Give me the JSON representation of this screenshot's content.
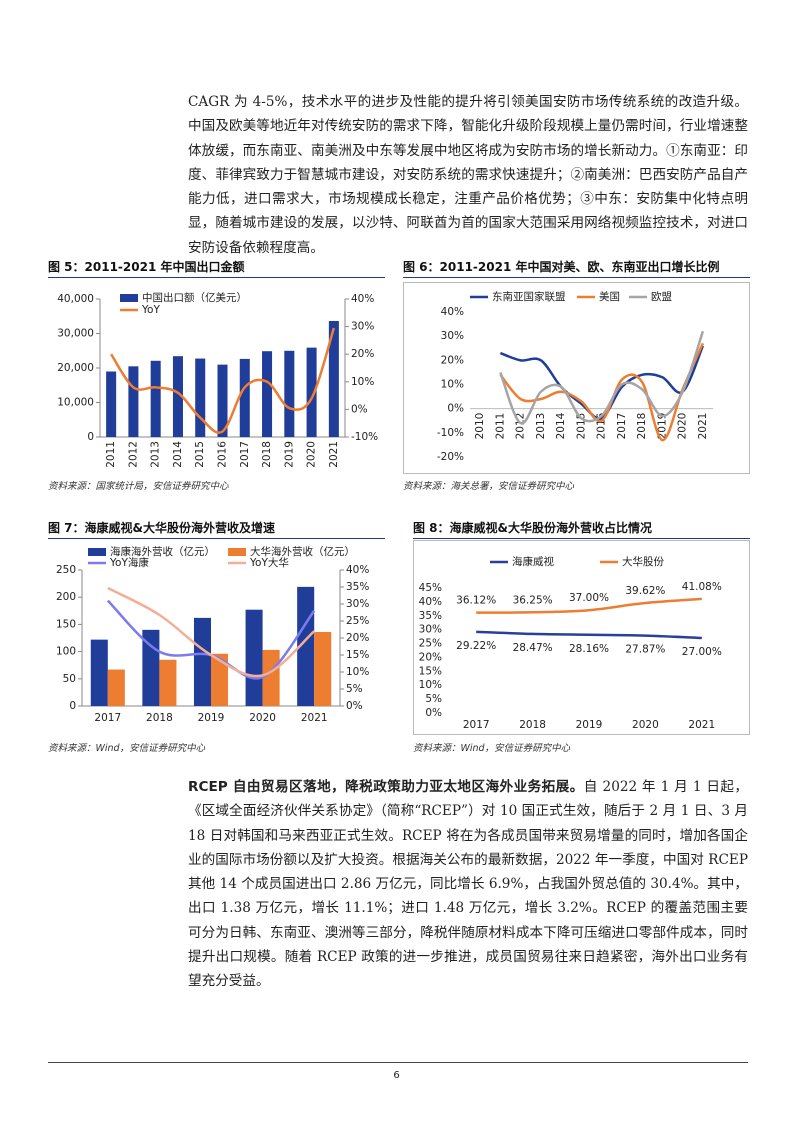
{
  "document": {
    "paragraphs": [
      {
        "text": "CAGR 为 4-5%，技术水平的进步及性能的提升将引领美国安防市场传统系统的改造升级。中国及欧美等地近年对传统安防的需求下降，智能化升级阶段规模上量仍需时间，行业增速整体放缓，而东南亚、南美洲及中东等发展中地区将成为安防市场的增长新动力。①东南亚：印度、菲律宾致力于智慧城市建设，对安防系统的需求快速提升；②南美洲：巴西安防产品自产能力低，进口需求大，市场规模成长稳定，注重产品价格优势；③中东：安防集中化特点明显，随着城市建设的发展，以沙特、阿联酋为首的国家大范围采用网络视频监控技术，对进口安防设备依赖程度高。"
      },
      {
        "lead": "RCEP 自由贸易区落地，降税政策助力亚太地区海外业务拓展。",
        "text": "自 2022 年 1 月 1 日起，《区域全面经济伙伴关系协定》（简称“RCEP”）对 10 国正式生效，随后于 2 月 1 日、3 月 18 日对韩国和马来西亚正式生效。RCEP 将在为各成员国带来贸易增量的同时，增加各国企业的国际市场份额以及扩大投资。根据海关公布的最新数据，2022 年一季度，中国对 RCEP 其他 14 个成员国进出口 2.86 万亿元，同比增长 6.9%，占我国外贸总值的 30.4%。其中，出口 1.38 万亿元，增长 11.1%；进口 1.48 万亿元，增长 3.2%。RCEP 的覆盖范围主要可分为日韩、东南亚、澳洲等三部分，降税伴随原材料成本下降可压缩进口零部件成本，同时提升出口规模。随着 RCEP 政策的进一步推进，成员国贸易往来日趋紧密，海外出口业务有望充分受益。"
      }
    ],
    "page_number": "6"
  },
  "chart_data": [
    {
      "type": "combo",
      "title": "图 5：2011-2021 年中国出口金额",
      "source": "资料来源：国家统计局，安信证券研究中心",
      "legend": "top",
      "categories": [
        "2011",
        "2012",
        "2013",
        "2014",
        "2015",
        "2016",
        "2017",
        "2018",
        "2019",
        "2020",
        "2021"
      ],
      "series": [
        {
          "name": "中国出口额（亿美元）",
          "type": "bar",
          "color": "#1f3d99",
          "values": [
            18984,
            20487,
            22090,
            23423,
            22735,
            20976,
            22635,
            24867,
            24990,
            25900,
            33630
          ]
        },
        {
          "name": "YoY",
          "type": "line",
          "axis": "y2",
          "color": "#ed7d31",
          "values": [
            20,
            8,
            8,
            6,
            -3,
            -8,
            8,
            10,
            0.5,
            4,
            29.5
          ]
        }
      ],
      "ylim": [
        0,
        40000
      ],
      "yticks": [
        0,
        {
          "value": 10000,
          "label": "10,000"
        },
        {
          "value": 20000,
          "label": "20,000"
        },
        {
          "value": 30000,
          "label": "30,000"
        },
        {
          "value": 40000,
          "label": "40,000"
        }
      ],
      "y2lim": [
        -10,
        40
      ],
      "y2ticks": [
        {
          "value": -10,
          "label": "-10%"
        },
        {
          "value": 0,
          "label": "0%"
        },
        {
          "value": 10,
          "label": "10%"
        },
        {
          "value": 20,
          "label": "20%"
        },
        {
          "value": 30,
          "label": "30%"
        },
        {
          "value": 40,
          "label": "40%"
        }
      ]
    },
    {
      "type": "line",
      "title": "图 6：2011-2021 年中国对美、欧、东南亚出口增长比例",
      "source": "资料来源：海关总署，安信证券研究中心",
      "legend": "top",
      "categories": [
        "2010",
        "2011",
        "2012",
        "2013",
        "2014",
        "2015",
        "2016",
        "2017",
        "2018",
        "2019",
        "2020",
        "2021"
      ],
      "series": [
        {
          "name": "东南亚国家联盟",
          "color": "#1f3d99",
          "values": [
            null,
            23,
            20,
            20,
            9,
            2,
            -4,
            9,
            14,
            13,
            7,
            26
          ]
        },
        {
          "name": "美国",
          "color": "#ed7d31",
          "values": [
            null,
            14,
            4,
            4,
            7,
            3,
            -5,
            12,
            11,
            -13,
            8,
            27
          ]
        },
        {
          "name": "欧盟",
          "color": "#a5a5a5",
          "values": [
            null,
            15,
            -6,
            7,
            9,
            -4,
            -3,
            10,
            8,
            -3,
            7,
            32
          ]
        }
      ],
      "ylim": [
        -20,
        40
      ],
      "yticks": [
        {
          "value": -20,
          "label": "-20%"
        },
        {
          "value": -10,
          "label": "-10%"
        },
        {
          "value": 0,
          "label": "0%"
        },
        {
          "value": 10,
          "label": "10%"
        },
        {
          "value": 20,
          "label": "20%"
        },
        {
          "value": 30,
          "label": "30%"
        },
        {
          "value": 40,
          "label": "40%"
        }
      ]
    },
    {
      "type": "combo",
      "title": "图 7：海康威视&大华股份海外营收及增速",
      "source": "资料来源：Wind，安信证券研究中心",
      "legend": "top",
      "categories": [
        "2017",
        "2018",
        "2019",
        "2020",
        "2021"
      ],
      "series": [
        {
          "name": "海康海外营收（亿元）",
          "type": "bar",
          "color": "#1f3d99",
          "values": [
            122,
            140,
            162,
            177,
            219
          ]
        },
        {
          "name": "大华海外营收（亿元）",
          "type": "bar",
          "color": "#ed7d31",
          "values": [
            67,
            85,
            96,
            103,
            136
          ]
        },
        {
          "name": "YoY海康",
          "type": "line",
          "axis": "y2",
          "color": "#7b7bf0",
          "values": [
            31,
            16,
            15,
            8.5,
            28
          ]
        },
        {
          "name": "YoY大华",
          "type": "line",
          "axis": "y2",
          "color": "#f4ae96",
          "values": [
            34.7,
            26.8,
            15,
            9,
            22
          ]
        }
      ],
      "ylim": [
        0,
        250
      ],
      "yticks": [
        0,
        50,
        100,
        150,
        200,
        250
      ],
      "y2lim": [
        0,
        40
      ],
      "y2ticks": [
        {
          "value": 0,
          "label": "0%"
        },
        {
          "value": 5,
          "label": "5%"
        },
        {
          "value": 10,
          "label": "10%"
        },
        {
          "value": 15,
          "label": "15%"
        },
        {
          "value": 20,
          "label": "20%"
        },
        {
          "value": 25,
          "label": "25%"
        },
        {
          "value": 30,
          "label": "30%"
        },
        {
          "value": 35,
          "label": "35%"
        },
        {
          "value": 40,
          "label": "40%"
        }
      ]
    },
    {
      "type": "line",
      "title": "图 8：海康威视&大华股份海外营收占比情况",
      "source": "资料来源：Wind，安信证券研究中心",
      "legend": "top",
      "categories": [
        "2017",
        "2018",
        "2019",
        "2020",
        "2021"
      ],
      "series": [
        {
          "name": "海康威视",
          "color": "#2a3f9a",
          "values": [
            29.22,
            28.47,
            28.16,
            27.87,
            27.0
          ],
          "value_labels": [
            "29.22%",
            "28.47%",
            "28.16%",
            "27.87%",
            "27.00%"
          ]
        },
        {
          "name": "大华股份",
          "color": "#ed7d31",
          "values": [
            36.12,
            36.25,
            37.0,
            39.62,
            41.08
          ],
          "value_labels": [
            "36.12%",
            "36.25%",
            "37.00%",
            "39.62%",
            "41.08%"
          ]
        }
      ],
      "ylim": [
        0,
        45
      ],
      "yticks": [
        {
          "value": 0,
          "label": "0%"
        },
        {
          "value": 5,
          "label": "5%"
        },
        {
          "value": 10,
          "label": "10%"
        },
        {
          "value": 15,
          "label": "15%"
        },
        {
          "value": 20,
          "label": "20%"
        },
        {
          "value": 25,
          "label": "25%"
        },
        {
          "value": 30,
          "label": "30%"
        },
        {
          "value": 35,
          "label": "35%"
        },
        {
          "value": 40,
          "label": "40%"
        },
        {
          "value": 45,
          "label": "45%"
        }
      ]
    }
  ]
}
